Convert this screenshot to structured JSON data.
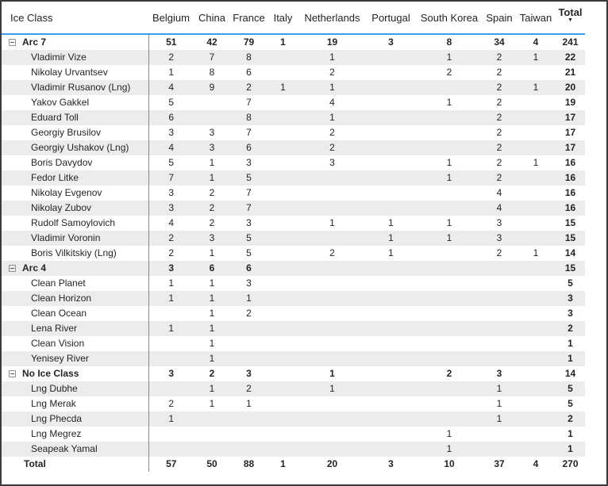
{
  "colors": {
    "accent_blue": "#3a9bed",
    "stripe_gray": "#ececec",
    "outer_border": "#3b3b3b",
    "text": "#252423"
  },
  "table": {
    "corner_label": "Ice Class",
    "columns": [
      "Belgium",
      "China",
      "France",
      "Italy",
      "Netherlands",
      "Portugal",
      "South Korea",
      "Spain",
      "Taiwan",
      "Total"
    ],
    "sort": {
      "column": "Total",
      "direction": "descending",
      "icon": "▼"
    },
    "collapse_icon": "minus-box",
    "rows": [
      {
        "label": "Arc 7",
        "type": "group",
        "values": [
          "51",
          "42",
          "79",
          "1",
          "19",
          "3",
          "8",
          "34",
          "4",
          "241"
        ]
      },
      {
        "label": "Vladimir Vize",
        "type": "item",
        "values": [
          "2",
          "7",
          "8",
          "",
          "1",
          "",
          "1",
          "2",
          "1",
          "22"
        ]
      },
      {
        "label": "Nikolay Urvantsev",
        "type": "item",
        "values": [
          "1",
          "8",
          "6",
          "",
          "2",
          "",
          "2",
          "2",
          "",
          "21"
        ]
      },
      {
        "label": "Vladimir Rusanov (Lng)",
        "type": "item",
        "values": [
          "4",
          "9",
          "2",
          "1",
          "1",
          "",
          "",
          "2",
          "1",
          "20"
        ]
      },
      {
        "label": "Yakov Gakkel",
        "type": "item",
        "values": [
          "5",
          "",
          "7",
          "",
          "4",
          "",
          "1",
          "2",
          "",
          "19"
        ]
      },
      {
        "label": "Eduard Toll",
        "type": "item",
        "values": [
          "6",
          "",
          "8",
          "",
          "1",
          "",
          "",
          "2",
          "",
          "17"
        ]
      },
      {
        "label": "Georgiy Brusilov",
        "type": "item",
        "values": [
          "3",
          "3",
          "7",
          "",
          "2",
          "",
          "",
          "2",
          "",
          "17"
        ]
      },
      {
        "label": "Georgiy Ushakov (Lng)",
        "type": "item",
        "values": [
          "4",
          "3",
          "6",
          "",
          "2",
          "",
          "",
          "2",
          "",
          "17"
        ]
      },
      {
        "label": "Boris Davydov",
        "type": "item",
        "values": [
          "5",
          "1",
          "3",
          "",
          "3",
          "",
          "1",
          "2",
          "1",
          "16"
        ]
      },
      {
        "label": "Fedor Litke",
        "type": "item",
        "values": [
          "7",
          "1",
          "5",
          "",
          "",
          "",
          "1",
          "2",
          "",
          "16"
        ]
      },
      {
        "label": "Nikolay Evgenov",
        "type": "item",
        "values": [
          "3",
          "2",
          "7",
          "",
          "",
          "",
          "",
          "4",
          "",
          "16"
        ]
      },
      {
        "label": "Nikolay Zubov",
        "type": "item",
        "values": [
          "3",
          "2",
          "7",
          "",
          "",
          "",
          "",
          "4",
          "",
          "16"
        ]
      },
      {
        "label": "Rudolf Samoylovich",
        "type": "item",
        "values": [
          "4",
          "2",
          "3",
          "",
          "1",
          "1",
          "1",
          "3",
          "",
          "15"
        ]
      },
      {
        "label": "Vladimir Voronin",
        "type": "item",
        "values": [
          "2",
          "3",
          "5",
          "",
          "",
          "1",
          "1",
          "3",
          "",
          "15"
        ]
      },
      {
        "label": "Boris Vilkitskiy (Lng)",
        "type": "item",
        "values": [
          "2",
          "1",
          "5",
          "",
          "2",
          "1",
          "",
          "2",
          "1",
          "14"
        ]
      },
      {
        "label": "Arc 4",
        "type": "group",
        "values": [
          "3",
          "6",
          "6",
          "",
          "",
          "",
          "",
          "",
          "",
          "15"
        ]
      },
      {
        "label": "Clean Planet",
        "type": "item",
        "values": [
          "1",
          "1",
          "3",
          "",
          "",
          "",
          "",
          "",
          "",
          "5"
        ]
      },
      {
        "label": "Clean Horizon",
        "type": "item",
        "values": [
          "1",
          "1",
          "1",
          "",
          "",
          "",
          "",
          "",
          "",
          "3"
        ]
      },
      {
        "label": "Clean Ocean",
        "type": "item",
        "values": [
          "",
          "1",
          "2",
          "",
          "",
          "",
          "",
          "",
          "",
          "3"
        ]
      },
      {
        "label": "Lena River",
        "type": "item",
        "values": [
          "1",
          "1",
          "",
          "",
          "",
          "",
          "",
          "",
          "",
          "2"
        ]
      },
      {
        "label": "Clean Vision",
        "type": "item",
        "values": [
          "",
          "1",
          "",
          "",
          "",
          "",
          "",
          "",
          "",
          "1"
        ]
      },
      {
        "label": "Yenisey River",
        "type": "item",
        "values": [
          "",
          "1",
          "",
          "",
          "",
          "",
          "",
          "",
          "",
          "1"
        ]
      },
      {
        "label": "No Ice Class",
        "type": "group",
        "values": [
          "3",
          "2",
          "3",
          "",
          "1",
          "",
          "2",
          "3",
          "",
          "14"
        ]
      },
      {
        "label": "Lng Dubhe",
        "type": "item",
        "values": [
          "",
          "1",
          "2",
          "",
          "1",
          "",
          "",
          "1",
          "",
          "5"
        ]
      },
      {
        "label": "Lng Merak",
        "type": "item",
        "values": [
          "2",
          "1",
          "1",
          "",
          "",
          "",
          "",
          "1",
          "",
          "5"
        ]
      },
      {
        "label": "Lng Phecda",
        "type": "item",
        "values": [
          "1",
          "",
          "",
          "",
          "",
          "",
          "",
          "1",
          "",
          "2"
        ]
      },
      {
        "label": "Lng Megrez",
        "type": "item",
        "values": [
          "",
          "",
          "",
          "",
          "",
          "",
          "1",
          "",
          "",
          "1"
        ]
      },
      {
        "label": "Seapeak Yamal",
        "type": "item",
        "values": [
          "",
          "",
          "",
          "",
          "",
          "",
          "1",
          "",
          "",
          "1"
        ]
      },
      {
        "label": "Total",
        "type": "grand",
        "values": [
          "57",
          "50",
          "88",
          "1",
          "20",
          "3",
          "10",
          "37",
          "4",
          "270"
        ]
      }
    ]
  }
}
